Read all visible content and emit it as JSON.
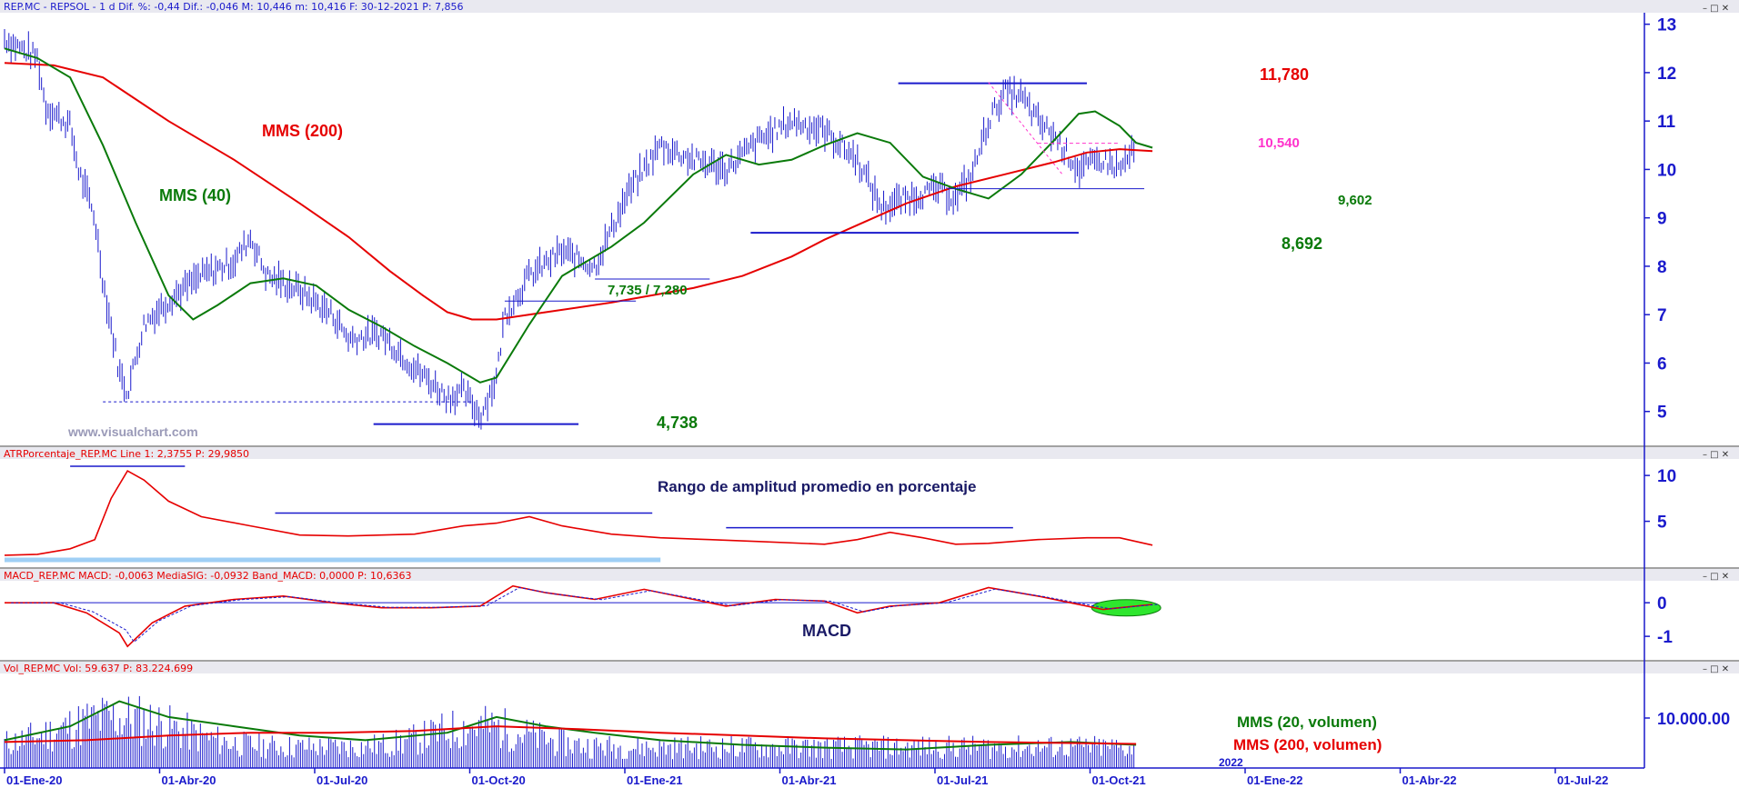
{
  "chart_data": [
    {
      "type": "line",
      "panel": "price",
      "header": "REP.MC - REPSOL -  1 d  Dif. %: -0,44  Dif.: -0,046  M: 10,446  m: 10,416  F: 30-12-2021  P: 7,856",
      "ylim": [
        4.3,
        13.2
      ],
      "y_ticks": [
        "13",
        "12",
        "11",
        "10",
        "9",
        "8",
        "7",
        "6",
        "5"
      ],
      "x_ticks": [
        "01-Ene-20",
        "01-Abr-20",
        "01-Jul-20",
        "01-Oct-20",
        "01-Ene-21",
        "01-Abr-21",
        "01-Jul-21",
        "01-Oct-21",
        "01-Ene-22",
        "01-Abr-22",
        "01-Jul-22"
      ],
      "series": [
        {
          "name": "MMS (200)",
          "color": "#e60000",
          "points": [
            [
              0,
              12.2
            ],
            [
              0.03,
              12.15
            ],
            [
              0.06,
              11.9
            ],
            [
              0.1,
              11.0
            ],
            [
              0.14,
              10.2
            ],
            [
              0.18,
              9.3
            ],
            [
              0.21,
              8.6
            ],
            [
              0.235,
              7.9
            ],
            [
              0.255,
              7.4
            ],
            [
              0.27,
              7.05
            ],
            [
              0.285,
              6.9
            ],
            [
              0.3,
              6.9
            ],
            [
              0.33,
              7.05
            ],
            [
              0.37,
              7.25
            ],
            [
              0.42,
              7.55
            ],
            [
              0.45,
              7.8
            ],
            [
              0.48,
              8.2
            ],
            [
              0.5,
              8.55
            ],
            [
              0.52,
              8.85
            ],
            [
              0.55,
              9.3
            ],
            [
              0.58,
              9.65
            ],
            [
              0.61,
              9.9
            ],
            [
              0.64,
              10.15
            ],
            [
              0.66,
              10.35
            ],
            [
              0.68,
              10.42
            ],
            [
              0.7,
              10.38
            ]
          ]
        },
        {
          "name": "MMS (40)",
          "color": "#0a7a0a",
          "points": [
            [
              0,
              12.5
            ],
            [
              0.02,
              12.3
            ],
            [
              0.04,
              11.9
            ],
            [
              0.06,
              10.5
            ],
            [
              0.08,
              8.9
            ],
            [
              0.1,
              7.4
            ],
            [
              0.115,
              6.9
            ],
            [
              0.13,
              7.2
            ],
            [
              0.15,
              7.65
            ],
            [
              0.17,
              7.75
            ],
            [
              0.19,
              7.6
            ],
            [
              0.21,
              7.1
            ],
            [
              0.23,
              6.75
            ],
            [
              0.25,
              6.35
            ],
            [
              0.27,
              6.0
            ],
            [
              0.29,
              5.6
            ],
            [
              0.3,
              5.7
            ],
            [
              0.32,
              6.8
            ],
            [
              0.34,
              7.8
            ],
            [
              0.37,
              8.4
            ],
            [
              0.39,
              8.9
            ],
            [
              0.42,
              9.9
            ],
            [
              0.44,
              10.3
            ],
            [
              0.46,
              10.1
            ],
            [
              0.48,
              10.2
            ],
            [
              0.5,
              10.5
            ],
            [
              0.52,
              10.75
            ],
            [
              0.54,
              10.55
            ],
            [
              0.56,
              9.85
            ],
            [
              0.58,
              9.6
            ],
            [
              0.6,
              9.4
            ],
            [
              0.62,
              9.9
            ],
            [
              0.64,
              10.6
            ],
            [
              0.655,
              11.15
            ],
            [
              0.665,
              11.2
            ],
            [
              0.68,
              10.9
            ],
            [
              0.69,
              10.55
            ],
            [
              0.7,
              10.45
            ]
          ]
        }
      ],
      "annotations": [
        {
          "text": "MMS (200)",
          "color": "#e60000"
        },
        {
          "text": "MMS (40)",
          "color": "#0a7a0a"
        },
        {
          "text": "11,780",
          "color": "#e60000"
        },
        {
          "text": "10,540",
          "color": "#ff33cc"
        },
        {
          "text": "9,602",
          "color": "#0a7a0a"
        },
        {
          "text": "8,692",
          "color": "#0a7a0a"
        },
        {
          "text": "7,735 / 7,280",
          "color": "#0a7a0a"
        },
        {
          "text": "4,738",
          "color": "#0a7a0a"
        }
      ],
      "levels": {
        "resistance": 11.78,
        "pink": 10.54,
        "support1": 9.602,
        "support2": 8.692,
        "support3": 7.735,
        "support4": 7.28,
        "low": 4.738,
        "low_dotted": 5.2
      },
      "watermark": "www.visualchart.com"
    },
    {
      "type": "line",
      "panel": "atr",
      "header": "ATRPorcentaje_REP.MC  Line 1: 2,3755  P: 29,9850",
      "ylim": [
        0,
        11.5
      ],
      "y_ticks": [
        "10",
        "5"
      ],
      "series": [
        {
          "name": "ATRPorcentaje",
          "color": "#e60000",
          "points": [
            [
              0,
              1.3
            ],
            [
              0.02,
              1.4
            ],
            [
              0.04,
              2.0
            ],
            [
              0.055,
              3.0
            ],
            [
              0.065,
              7.5
            ],
            [
              0.075,
              10.5
            ],
            [
              0.085,
              9.5
            ],
            [
              0.1,
              7.2
            ],
            [
              0.12,
              5.5
            ],
            [
              0.15,
              4.5
            ],
            [
              0.18,
              3.5
            ],
            [
              0.21,
              3.4
            ],
            [
              0.25,
              3.6
            ],
            [
              0.28,
              4.5
            ],
            [
              0.3,
              4.8
            ],
            [
              0.32,
              5.5
            ],
            [
              0.34,
              4.5
            ],
            [
              0.37,
              3.6
            ],
            [
              0.4,
              3.2
            ],
            [
              0.43,
              3.0
            ],
            [
              0.46,
              2.8
            ],
            [
              0.5,
              2.5
            ],
            [
              0.52,
              3.0
            ],
            [
              0.54,
              3.8
            ],
            [
              0.56,
              3.2
            ],
            [
              0.58,
              2.5
            ],
            [
              0.6,
              2.6
            ],
            [
              0.63,
              3.0
            ],
            [
              0.66,
              3.2
            ],
            [
              0.68,
              3.2
            ],
            [
              0.7,
              2.4
            ]
          ]
        }
      ],
      "annotations": [
        {
          "text": "Rango de amplitud promedio en porcentaje",
          "color": "#1a1a66"
        }
      ]
    },
    {
      "type": "line",
      "panel": "macd",
      "header": "MACD_REP.MC  MACD: -0,0063  MediaSIG: -0,0932  Band_MACD: 0,0000  P: 10,6363",
      "ylim": [
        -1.7,
        0.6
      ],
      "y_ticks": [
        "0",
        "-1"
      ],
      "series": [
        {
          "name": "MACD",
          "color": "#e60000",
          "points": [
            [
              0,
              0
            ],
            [
              0.03,
              0
            ],
            [
              0.05,
              -0.3
            ],
            [
              0.07,
              -0.9
            ],
            [
              0.075,
              -1.3
            ],
            [
              0.09,
              -0.6
            ],
            [
              0.11,
              -0.1
            ],
            [
              0.14,
              0.1
            ],
            [
              0.17,
              0.2
            ],
            [
              0.2,
              0
            ],
            [
              0.23,
              -0.15
            ],
            [
              0.26,
              -0.15
            ],
            [
              0.29,
              -0.1
            ],
            [
              0.31,
              0.5
            ],
            [
              0.33,
              0.3
            ],
            [
              0.36,
              0.1
            ],
            [
              0.39,
              0.4
            ],
            [
              0.42,
              0.1
            ],
            [
              0.44,
              -0.1
            ],
            [
              0.47,
              0.1
            ],
            [
              0.5,
              0.05
            ],
            [
              0.52,
              -0.3
            ],
            [
              0.54,
              -0.1
            ],
            [
              0.57,
              0
            ],
            [
              0.6,
              0.45
            ],
            [
              0.63,
              0.2
            ],
            [
              0.65,
              0
            ],
            [
              0.67,
              -0.2
            ],
            [
              0.68,
              -0.15
            ],
            [
              0.7,
              -0.05
            ]
          ]
        }
      ],
      "annotations": [
        {
          "text": "MACD",
          "color": "#1a1a66"
        }
      ]
    },
    {
      "type": "bar",
      "panel": "volume",
      "header": "Vol_REP.MC  Vol: 59.637  P: 83.224.699",
      "y_ticks": [
        "10.000.00"
      ],
      "series": [
        {
          "name": "MMS (20, volumen)",
          "color": "#0a7a0a"
        },
        {
          "name": "MMS (200, volumen)",
          "color": "#e60000"
        }
      ],
      "annotations": [
        {
          "text": "MMS (20, volumen)",
          "color": "#0a7a0a"
        },
        {
          "text": "MMS (200, volumen)",
          "color": "#e60000"
        },
        {
          "text": "2022",
          "color": "#1a1acc"
        }
      ]
    }
  ]
}
